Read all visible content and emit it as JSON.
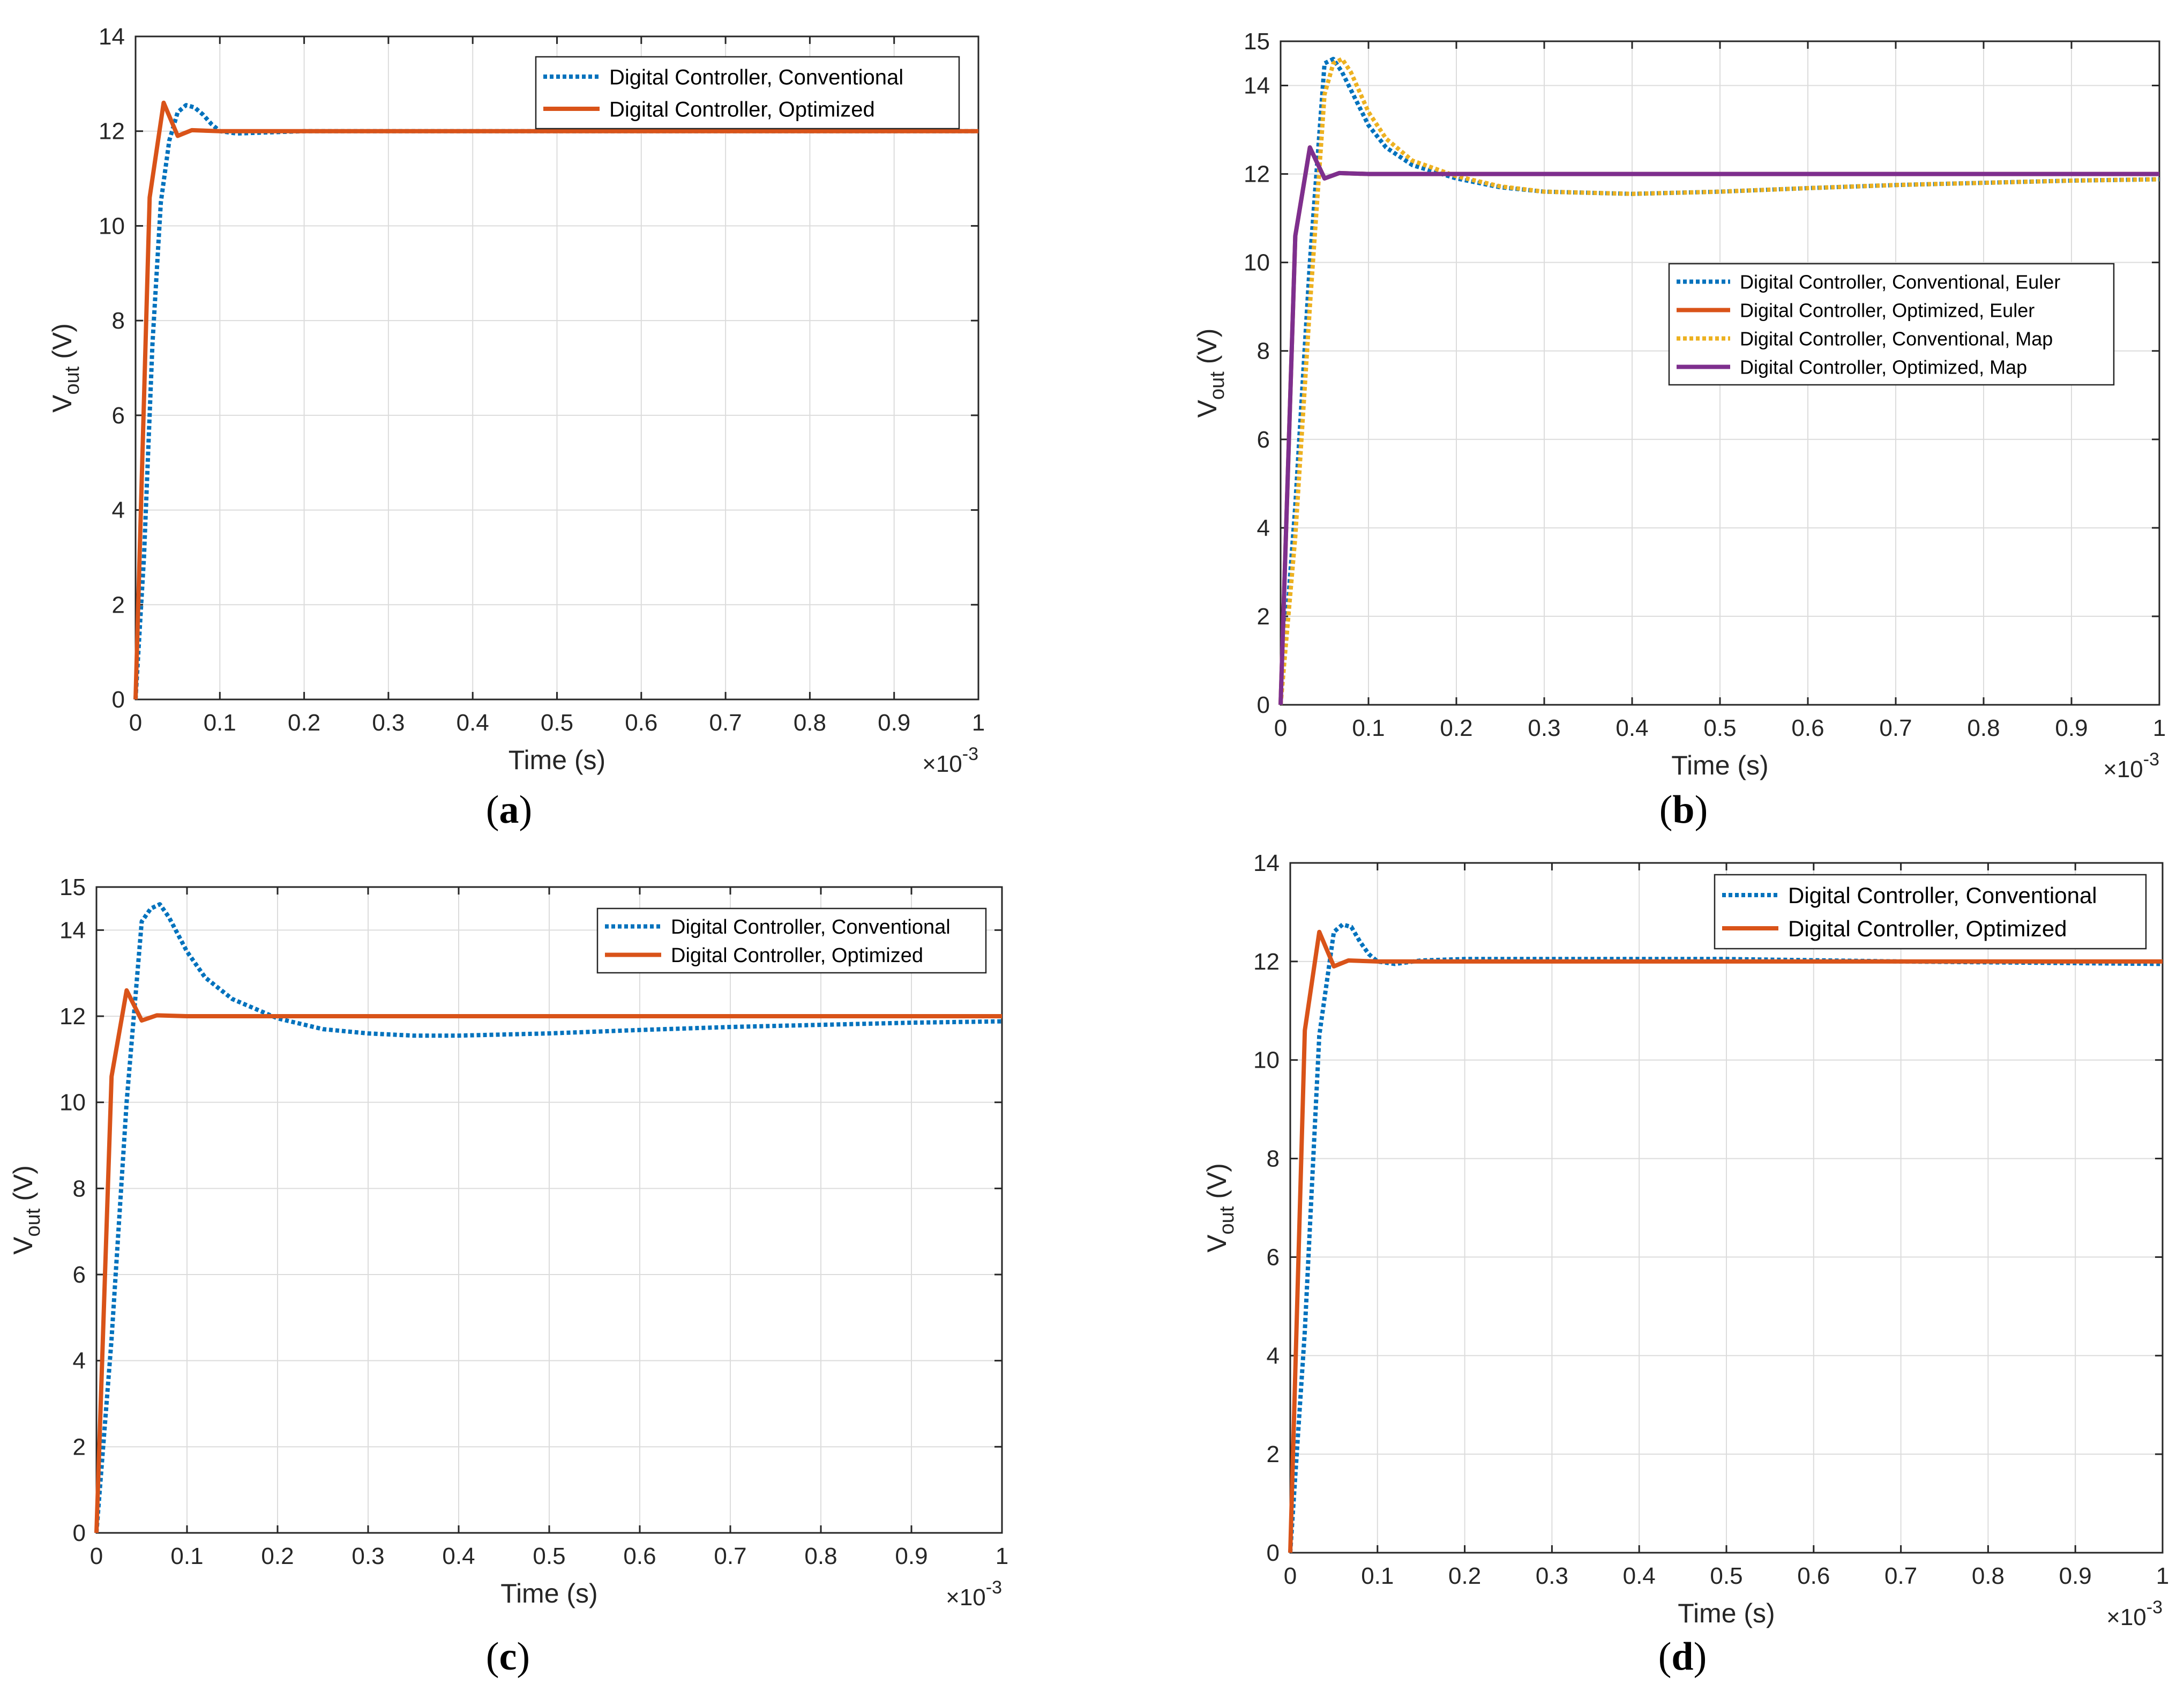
{
  "chart_data": [
    {
      "id": "a",
      "type": "line",
      "caption": "(a)",
      "xlabel": "Time (s)",
      "ylabel_main": "V",
      "ylabel_sub": "out",
      "ylabel_unit": " (V)",
      "x_multiplier": "×10",
      "x_multiplier_exp": "-3",
      "xlim": [
        0,
        1
      ],
      "ylim": [
        0,
        14
      ],
      "xticks": [
        "0",
        "0.1",
        "0.2",
        "0.3",
        "0.4",
        "0.5",
        "0.6",
        "0.7",
        "0.8",
        "0.9",
        "1"
      ],
      "yticks": [
        "0",
        "2",
        "4",
        "6",
        "8",
        "10",
        "12",
        "14"
      ],
      "legend_position": "top-right",
      "series": [
        {
          "name": "Digital Controller, Conventional",
          "color": "#0072BD",
          "style": "dotted",
          "x": [
            0,
            0.01,
            0.02,
            0.03,
            0.04,
            0.05,
            0.06,
            0.07,
            0.08,
            0.09,
            0.1,
            0.12,
            0.15,
            0.2,
            0.3,
            0.5,
            0.7,
            1.0
          ],
          "y": [
            0,
            3.0,
            7.5,
            10.5,
            11.8,
            12.4,
            12.55,
            12.5,
            12.35,
            12.15,
            12.0,
            11.95,
            11.97,
            12.0,
            12.0,
            12.0,
            12.0,
            12.0
          ]
        },
        {
          "name": "Digital Controller, Optimized",
          "color": "#D95319",
          "style": "solid",
          "x": [
            0,
            0.0167,
            0.0333,
            0.05,
            0.0667,
            0.1,
            0.2,
            0.5,
            1.0
          ],
          "y": [
            0,
            10.6,
            12.6,
            11.9,
            12.02,
            12.0,
            12.0,
            12.0,
            12.0
          ]
        }
      ]
    },
    {
      "id": "b",
      "type": "line",
      "caption": "(b)",
      "xlabel": "Time (s)",
      "ylabel_main": "V",
      "ylabel_sub": "out",
      "ylabel_unit": " (V)",
      "x_multiplier": "×10",
      "x_multiplier_exp": "-3",
      "xlim": [
        0,
        1
      ],
      "ylim": [
        0,
        15
      ],
      "xticks": [
        "0",
        "0.1",
        "0.2",
        "0.3",
        "0.4",
        "0.5",
        "0.6",
        "0.7",
        "0.8",
        "0.9",
        "1"
      ],
      "yticks": [
        "0",
        "2",
        "4",
        "6",
        "8",
        "10",
        "12",
        "14",
        "15"
      ],
      "legend_position": "center-right",
      "series": [
        {
          "name": "Digital Controller, Conventional, Euler",
          "color": "#0072BD",
          "style": "dotted",
          "x": [
            0,
            0.0167,
            0.0333,
            0.05,
            0.06,
            0.07,
            0.08,
            0.1,
            0.12,
            0.15,
            0.2,
            0.25,
            0.3,
            0.4,
            0.5,
            0.6,
            0.7,
            0.8,
            0.9,
            1.0
          ],
          "y": [
            0,
            4.5,
            10.0,
            14.5,
            14.6,
            14.3,
            13.9,
            13.1,
            12.6,
            12.2,
            11.9,
            11.7,
            11.6,
            11.55,
            11.6,
            11.68,
            11.75,
            11.8,
            11.85,
            11.88
          ]
        },
        {
          "name": "Digital Controller, Optimized, Euler",
          "color": "#D95319",
          "style": "solid",
          "x": [
            0,
            0.0167,
            0.0333,
            0.05,
            0.0667,
            0.1,
            0.2,
            0.5,
            1.0
          ],
          "y": [
            0,
            10.6,
            12.6,
            11.9,
            12.02,
            12.0,
            12.0,
            12.0,
            12.0
          ]
        },
        {
          "name": "Digital Controller, Conventional, Map",
          "color": "#EDB120",
          "style": "dotted",
          "x": [
            0,
            0.0167,
            0.0333,
            0.05,
            0.06,
            0.07,
            0.08,
            0.1,
            0.12,
            0.15,
            0.2,
            0.25,
            0.3,
            0.4,
            0.5,
            0.6,
            0.7,
            0.8,
            0.9,
            1.0
          ],
          "y": [
            0,
            3.8,
            9.0,
            13.8,
            14.5,
            14.6,
            14.3,
            13.4,
            12.8,
            12.3,
            11.95,
            11.72,
            11.6,
            11.55,
            11.6,
            11.68,
            11.75,
            11.8,
            11.85,
            11.88
          ]
        },
        {
          "name": "Digital Controller, Optimized, Map",
          "color": "#7E2F8E",
          "style": "solid",
          "x": [
            0,
            0.0167,
            0.0333,
            0.05,
            0.0667,
            0.1,
            0.2,
            0.5,
            1.0
          ],
          "y": [
            0,
            10.6,
            12.6,
            11.9,
            12.02,
            12.0,
            12.0,
            12.0,
            12.0
          ]
        }
      ]
    },
    {
      "id": "c",
      "type": "line",
      "caption": "(c)",
      "xlabel": "Time (s)",
      "ylabel_main": "V",
      "ylabel_sub": "out",
      "ylabel_unit": " (V)",
      "x_multiplier": "×10",
      "x_multiplier_exp": "-3",
      "xlim": [
        0,
        1
      ],
      "ylim": [
        0,
        15
      ],
      "xticks": [
        "0",
        "0.1",
        "0.2",
        "0.3",
        "0.4",
        "0.5",
        "0.6",
        "0.7",
        "0.8",
        "0.9",
        "1"
      ],
      "yticks": [
        "0",
        "2",
        "4",
        "6",
        "8",
        "10",
        "12",
        "14",
        "15"
      ],
      "legend_position": "top-right",
      "series": [
        {
          "name": "Digital Controller, Conventional",
          "color": "#0072BD",
          "style": "dotted",
          "x": [
            0,
            0.0167,
            0.0333,
            0.05,
            0.06,
            0.07,
            0.08,
            0.1,
            0.12,
            0.15,
            0.2,
            0.25,
            0.3,
            0.35,
            0.4,
            0.5,
            0.6,
            0.7,
            0.8,
            0.9,
            1.0
          ],
          "y": [
            0,
            4.5,
            10.0,
            14.2,
            14.5,
            14.6,
            14.3,
            13.5,
            12.9,
            12.4,
            11.95,
            11.7,
            11.6,
            11.55,
            11.55,
            11.6,
            11.68,
            11.75,
            11.8,
            11.85,
            11.88
          ]
        },
        {
          "name": "Digital Controller, Optimized",
          "color": "#D95319",
          "style": "solid",
          "x": [
            0,
            0.0167,
            0.0333,
            0.05,
            0.0667,
            0.1,
            0.2,
            0.5,
            1.0
          ],
          "y": [
            0,
            10.6,
            12.6,
            11.9,
            12.02,
            12.0,
            12.0,
            12.0,
            12.0
          ]
        }
      ]
    },
    {
      "id": "d",
      "type": "line",
      "caption": "(d)",
      "xlabel": "Time (s)",
      "ylabel_main": "V",
      "ylabel_sub": "out",
      "ylabel_unit": " (V)",
      "x_multiplier": "×10",
      "x_multiplier_exp": "-3",
      "xlim": [
        0,
        1
      ],
      "ylim": [
        0,
        14
      ],
      "xticks": [
        "0",
        "0.1",
        "0.2",
        "0.3",
        "0.4",
        "0.5",
        "0.6",
        "0.7",
        "0.8",
        "0.9",
        "1"
      ],
      "yticks": [
        "0",
        "2",
        "4",
        "6",
        "8",
        "10",
        "12",
        "14"
      ],
      "legend_position": "top-right",
      "series": [
        {
          "name": "Digital Controller, Conventional",
          "color": "#0072BD",
          "style": "dotted",
          "x": [
            0,
            0.0167,
            0.0333,
            0.05,
            0.06,
            0.07,
            0.08,
            0.09,
            0.1,
            0.12,
            0.15,
            0.2,
            0.3,
            0.5,
            0.7,
            1.0
          ],
          "y": [
            0,
            4.5,
            10.5,
            12.6,
            12.75,
            12.7,
            12.4,
            12.15,
            12.0,
            11.95,
            12.02,
            12.05,
            12.05,
            12.05,
            12.0,
            11.95
          ]
        },
        {
          "name": "Digital Controller, Optimized",
          "color": "#D95319",
          "style": "solid",
          "x": [
            0,
            0.0167,
            0.0333,
            0.05,
            0.0667,
            0.1,
            0.2,
            0.5,
            1.0
          ],
          "y": [
            0,
            10.6,
            12.6,
            11.9,
            12.02,
            12.0,
            12.0,
            12.0,
            12.0
          ]
        }
      ]
    }
  ]
}
